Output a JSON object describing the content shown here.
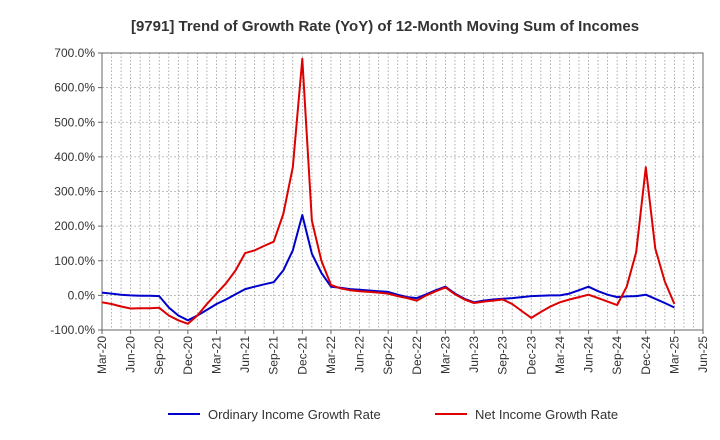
{
  "chart_data": {
    "type": "line",
    "title": "[9791]  Trend of Growth Rate (YoY) of 12-Month Moving Sum of Incomes",
    "xlabel": "",
    "ylabel": "",
    "ylim": [
      -100,
      700
    ],
    "y_ticks": [
      "700.0%",
      "600.0%",
      "500.0%",
      "400.0%",
      "300.0%",
      "200.0%",
      "100.0%",
      "0.0%",
      "-100.0%"
    ],
    "y_tick_values": [
      700,
      600,
      500,
      400,
      300,
      200,
      100,
      0,
      -100
    ],
    "x_ticks": [
      "Mar-20",
      "Jun-20",
      "Sep-20",
      "Dec-20",
      "Mar-21",
      "Jun-21",
      "Sep-21",
      "Dec-21",
      "Mar-22",
      "Jun-22",
      "Sep-22",
      "Dec-22",
      "Mar-23",
      "Jun-23",
      "Sep-23",
      "Dec-23",
      "Mar-24",
      "Jun-24",
      "Sep-24",
      "Dec-24",
      "Mar-25",
      "Jun-25"
    ],
    "x_start": "2020-03",
    "x_end": "2025-06",
    "grid": true,
    "legend_position": "bottom",
    "series": [
      {
        "name": "Ordinary Income Growth Rate",
        "color": "#0000cc",
        "points": [
          [
            "2020-03",
            8
          ],
          [
            "2020-04",
            5
          ],
          [
            "2020-05",
            2
          ],
          [
            "2020-06",
            0
          ],
          [
            "2020-07",
            -1
          ],
          [
            "2020-08",
            -1
          ],
          [
            "2020-09",
            -2
          ],
          [
            "2020-10",
            -35
          ],
          [
            "2020-11",
            -58
          ],
          [
            "2020-12",
            -72
          ],
          [
            "2021-01",
            -58
          ],
          [
            "2021-02",
            -42
          ],
          [
            "2021-03",
            -25
          ],
          [
            "2021-04",
            -12
          ],
          [
            "2021-05",
            3
          ],
          [
            "2021-06",
            18
          ],
          [
            "2021-07",
            25
          ],
          [
            "2021-08",
            32
          ],
          [
            "2021-09",
            38
          ],
          [
            "2021-10",
            72
          ],
          [
            "2021-11",
            130
          ],
          [
            "2021-12",
            232
          ],
          [
            "2022-01",
            120
          ],
          [
            "2022-02",
            65
          ],
          [
            "2022-03",
            25
          ],
          [
            "2022-04",
            22
          ],
          [
            "2022-05",
            18
          ],
          [
            "2022-06",
            16
          ],
          [
            "2022-07",
            14
          ],
          [
            "2022-08",
            12
          ],
          [
            "2022-09",
            10
          ],
          [
            "2022-10",
            2
          ],
          [
            "2022-11",
            -5
          ],
          [
            "2022-12",
            -8
          ],
          [
            "2023-01",
            3
          ],
          [
            "2023-02",
            15
          ],
          [
            "2023-03",
            25
          ],
          [
            "2023-04",
            5
          ],
          [
            "2023-05",
            -10
          ],
          [
            "2023-06",
            -20
          ],
          [
            "2023-07",
            -15
          ],
          [
            "2023-08",
            -12
          ],
          [
            "2023-09",
            -10
          ],
          [
            "2023-10",
            -8
          ],
          [
            "2023-11",
            -5
          ],
          [
            "2023-12",
            -2
          ],
          [
            "2024-01",
            -1
          ],
          [
            "2024-02",
            0
          ],
          [
            "2024-03",
            0
          ],
          [
            "2024-04",
            5
          ],
          [
            "2024-05",
            15
          ],
          [
            "2024-06",
            25
          ],
          [
            "2024-07",
            12
          ],
          [
            "2024-08",
            2
          ],
          [
            "2024-09",
            -5
          ],
          [
            "2024-10",
            -3
          ],
          [
            "2024-11",
            -2
          ],
          [
            "2024-12",
            2
          ],
          [
            "2025-01",
            -10
          ],
          [
            "2025-02",
            -22
          ],
          [
            "2025-03",
            -35
          ]
        ]
      },
      {
        "name": "Net Income Growth Rate",
        "color": "#dd0000",
        "points": [
          [
            "2020-03",
            -20
          ],
          [
            "2020-04",
            -25
          ],
          [
            "2020-05",
            -32
          ],
          [
            "2020-06",
            -38
          ],
          [
            "2020-07",
            -37
          ],
          [
            "2020-08",
            -37
          ],
          [
            "2020-09",
            -36
          ],
          [
            "2020-10",
            -58
          ],
          [
            "2020-11",
            -72
          ],
          [
            "2020-12",
            -82
          ],
          [
            "2021-01",
            -58
          ],
          [
            "2021-02",
            -25
          ],
          [
            "2021-03",
            5
          ],
          [
            "2021-04",
            35
          ],
          [
            "2021-05",
            72
          ],
          [
            "2021-06",
            122
          ],
          [
            "2021-07",
            130
          ],
          [
            "2021-08",
            143
          ],
          [
            "2021-09",
            155
          ],
          [
            "2021-10",
            235
          ],
          [
            "2021-11",
            370
          ],
          [
            "2021-12",
            683
          ],
          [
            "2022-01",
            215
          ],
          [
            "2022-02",
            100
          ],
          [
            "2022-03",
            30
          ],
          [
            "2022-04",
            20
          ],
          [
            "2022-05",
            15
          ],
          [
            "2022-06",
            12
          ],
          [
            "2022-07",
            10
          ],
          [
            "2022-08",
            8
          ],
          [
            "2022-09",
            5
          ],
          [
            "2022-10",
            -2
          ],
          [
            "2022-11",
            -8
          ],
          [
            "2022-12",
            -15
          ],
          [
            "2023-01",
            0
          ],
          [
            "2023-02",
            12
          ],
          [
            "2023-03",
            23
          ],
          [
            "2023-04",
            3
          ],
          [
            "2023-05",
            -12
          ],
          [
            "2023-06",
            -22
          ],
          [
            "2023-07",
            -18
          ],
          [
            "2023-08",
            -15
          ],
          [
            "2023-09",
            -12
          ],
          [
            "2023-10",
            -25
          ],
          [
            "2023-11",
            -45
          ],
          [
            "2023-12",
            -65
          ],
          [
            "2024-01",
            -48
          ],
          [
            "2024-02",
            -32
          ],
          [
            "2024-03",
            -20
          ],
          [
            "2024-04",
            -12
          ],
          [
            "2024-05",
            -5
          ],
          [
            "2024-06",
            2
          ],
          [
            "2024-07",
            -8
          ],
          [
            "2024-08",
            -18
          ],
          [
            "2024-09",
            -28
          ],
          [
            "2024-10",
            25
          ],
          [
            "2024-11",
            125
          ],
          [
            "2024-12",
            370
          ],
          [
            "2025-01",
            135
          ],
          [
            "2025-02",
            40
          ],
          [
            "2025-03",
            -25
          ]
        ]
      }
    ]
  }
}
